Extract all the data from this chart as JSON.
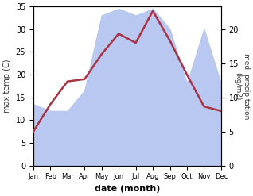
{
  "months": [
    "Jan",
    "Feb",
    "Mar",
    "Apr",
    "May",
    "Jun",
    "Jul",
    "Aug",
    "Sep",
    "Oct",
    "Nov",
    "Dec"
  ],
  "max_temp": [
    7.5,
    13.5,
    18.5,
    19.0,
    24.5,
    29.0,
    27.0,
    34.0,
    27.5,
    20.0,
    13.0,
    12.0
  ],
  "precipitation": [
    9,
    8,
    8,
    11,
    22,
    23,
    22,
    23,
    20,
    12,
    20,
    12
  ],
  "temp_ylim": [
    0,
    35
  ],
  "precip_ylim": [
    0,
    23.33
  ],
  "xlabel": "date (month)",
  "ylabel_left": "max temp (C)",
  "ylabel_right": "med. precipitation\n(kg/m2)",
  "precip_fill_color": "#b8c8f0",
  "temp_line_color": "#aa3344",
  "bg_color": "#ffffff"
}
